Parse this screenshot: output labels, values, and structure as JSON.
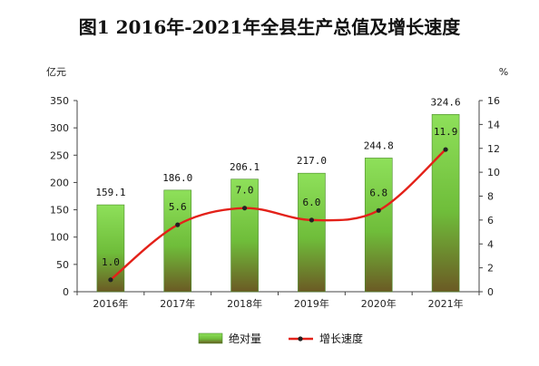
{
  "chart_data": {
    "type": "bar",
    "title": "图1   2016年-2021年全县生产总值及增长速度",
    "ylabel": "亿元",
    "y2label": "%",
    "categories": [
      "2016年",
      "2017年",
      "2018年",
      "2019年",
      "2020年",
      "2021年"
    ],
    "ylim": [
      0,
      350
    ],
    "y2lim": [
      0,
      16
    ],
    "yticks": [
      0,
      50,
      100,
      150,
      200,
      250,
      300,
      350
    ],
    "y2ticks": [
      0,
      2,
      4,
      6,
      8,
      10,
      12,
      14,
      16
    ],
    "series": [
      {
        "name": "绝对量",
        "kind": "bar",
        "axis": "left",
        "values": [
          159.1,
          186.0,
          206.1,
          217.0,
          244.8,
          324.6
        ],
        "labels": [
          "159.1",
          "186.0",
          "206.1",
          "217.0",
          "244.8",
          "324.6"
        ],
        "color": "#6cc24a"
      },
      {
        "name": "增长速度",
        "kind": "line",
        "axis": "right",
        "values": [
          1.0,
          5.6,
          7.0,
          6.0,
          6.8,
          11.9
        ],
        "labels": [
          "1.0",
          "5.6",
          "7.0",
          "6.0",
          "6.8",
          "11.9"
        ],
        "color": "#e32119"
      }
    ],
    "legend": "bottom-center",
    "grid": false
  }
}
